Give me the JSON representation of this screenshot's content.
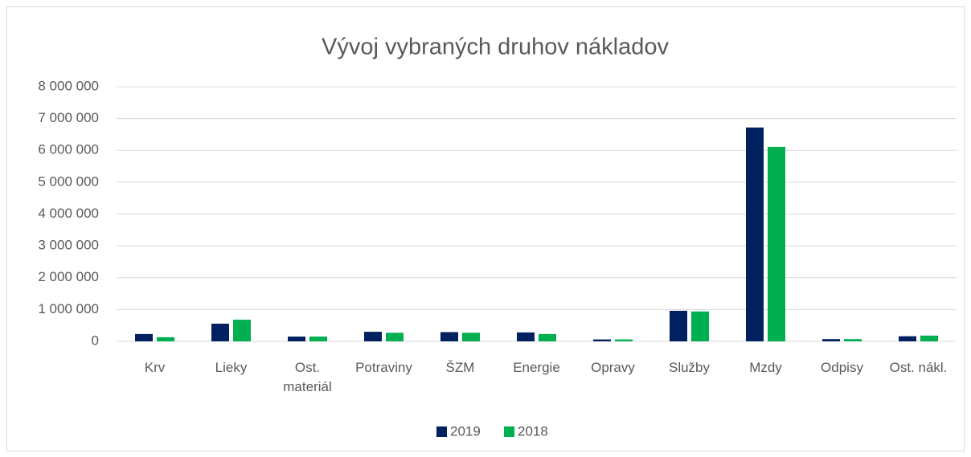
{
  "chart_data": {
    "type": "bar",
    "title": "Vývoj vybraných druhov nákladov",
    "categories": [
      "Krv",
      "Lieky",
      "Ost. materiál",
      "Potraviny",
      "ŠZM",
      "Energie",
      "Opravy",
      "Služby",
      "Mzdy",
      "Odpisy",
      "Ost. nákl."
    ],
    "series": [
      {
        "name": "2019",
        "color": "#002060",
        "values": [
          230000,
          555000,
          150000,
          300000,
          290000,
          280000,
          60000,
          960000,
          6720000,
          70000,
          160000
        ]
      },
      {
        "name": "2018",
        "color": "#00b050",
        "values": [
          130000,
          680000,
          150000,
          270000,
          270000,
          230000,
          60000,
          940000,
          6110000,
          70000,
          180000
        ]
      }
    ],
    "ylim": [
      0,
      8000000
    ],
    "yticks": [
      0,
      {
        "value": 1000000,
        "label": "1 000 000"
      },
      {
        "value": 2000000,
        "label": "2 000 000"
      },
      {
        "value": 3000000,
        "label": "3 000 000"
      },
      {
        "value": 4000000,
        "label": "4 000 000"
      },
      {
        "value": 5000000,
        "label": "5 000 000"
      },
      {
        "value": 6000000,
        "label": "6 000 000"
      },
      {
        "value": 7000000,
        "label": "7 000 000"
      },
      {
        "value": 8000000,
        "label": "8 000 000"
      }
    ],
    "grid": true,
    "legend": "bottom"
  }
}
